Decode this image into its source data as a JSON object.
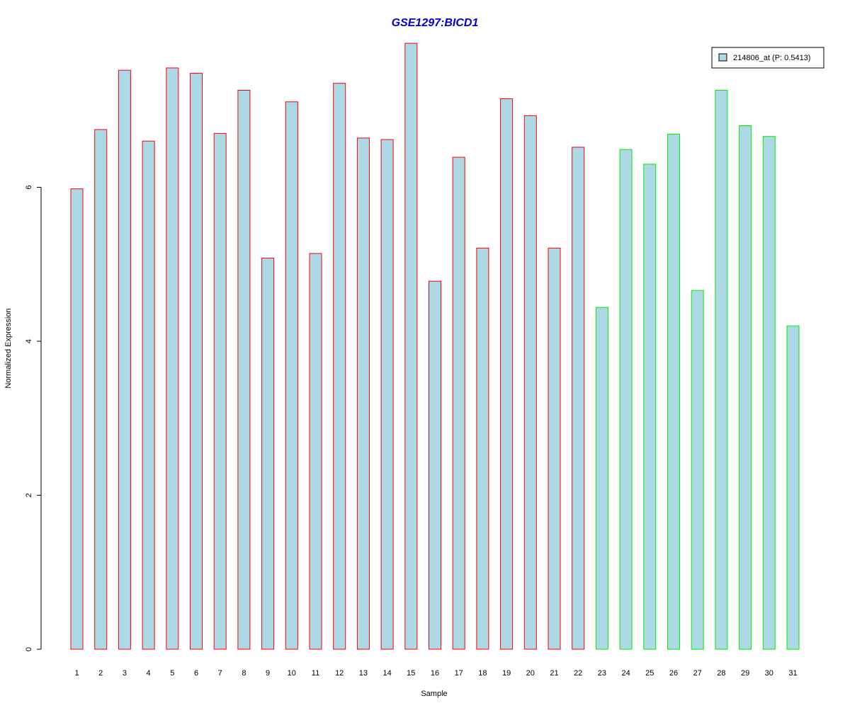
{
  "chart_data": {
    "type": "bar",
    "title": "GSE1297:BICD1",
    "xlabel": "Sample",
    "ylabel": "Normalized Expression",
    "categories": [
      "1",
      "2",
      "3",
      "4",
      "5",
      "6",
      "7",
      "8",
      "9",
      "10",
      "11",
      "12",
      "13",
      "14",
      "15",
      "16",
      "17",
      "18",
      "19",
      "20",
      "21",
      "22",
      "23",
      "24",
      "25",
      "26",
      "27",
      "28",
      "29",
      "30",
      "31"
    ],
    "series": [
      {
        "name": "214806_at (P: 0.5413)",
        "values": [
          5.98,
          6.75,
          7.52,
          6.6,
          7.55,
          7.48,
          6.7,
          7.26,
          5.08,
          7.11,
          5.14,
          7.35,
          6.64,
          6.62,
          7.87,
          4.78,
          6.39,
          5.21,
          7.15,
          6.93,
          5.21,
          6.52,
          4.44,
          6.49,
          6.3,
          6.69,
          4.66,
          7.26,
          6.8,
          6.66,
          4.2
        ]
      }
    ],
    "group_edge_colors": [
      "#ff0000",
      "#ff0000",
      "#ff0000",
      "#ff0000",
      "#ff0000",
      "#ff0000",
      "#ff0000",
      "#ff0000",
      "#ff0000",
      "#ff0000",
      "#ff0000",
      "#ff0000",
      "#ff0000",
      "#ff0000",
      "#ff0000",
      "#ff0000",
      "#ff0000",
      "#ff0000",
      "#ff0000",
      "#ff0000",
      "#ff0000",
      "#ff0000",
      "#00ee00",
      "#00ee00",
      "#00ee00",
      "#00ee00",
      "#00ee00",
      "#00ee00",
      "#00ee00",
      "#00ee00",
      "#00ee00"
    ],
    "yticks": [
      0,
      2,
      4,
      6
    ],
    "ylim": [
      0,
      8
    ],
    "grid": false,
    "legend_position": "top-right",
    "colors": {
      "bar_fill": "#add8e6",
      "title": "#0000cc",
      "axis": "#000000"
    }
  }
}
